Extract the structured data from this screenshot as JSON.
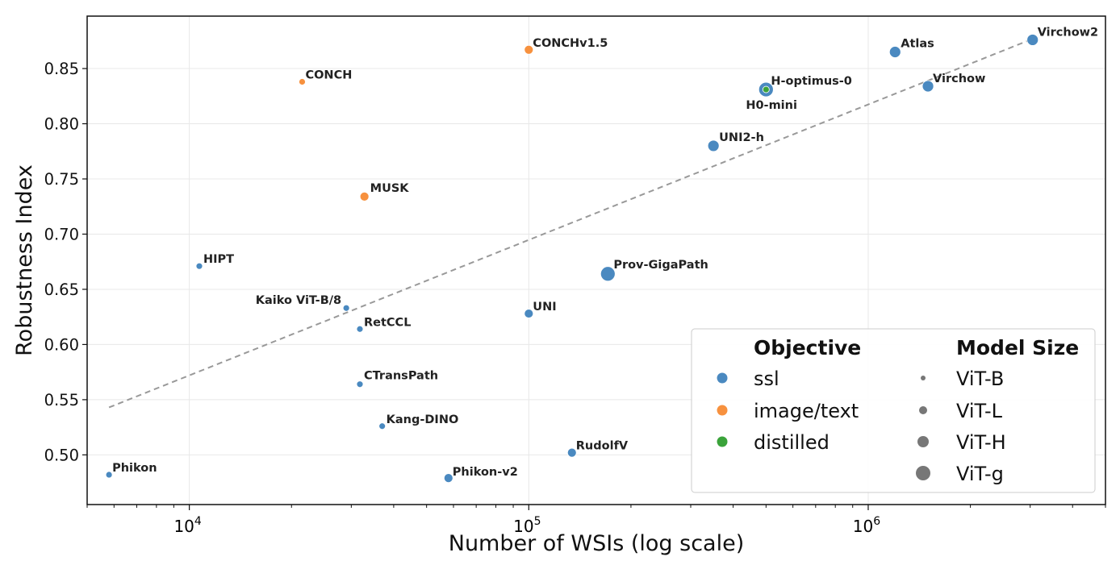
{
  "chart_data": {
    "type": "scatter",
    "xscale": "log",
    "xlabel": "Number of WSIs (log scale)",
    "ylabel": "Robustness Index",
    "xlim": [
      5000,
      5000000
    ],
    "ylim": [
      0.455,
      0.8975
    ],
    "yticks": [
      0.5,
      0.55,
      0.6,
      0.65,
      0.7,
      0.75,
      0.8,
      0.85
    ],
    "ytick_labels": [
      "0.50",
      "0.55",
      "0.60",
      "0.65",
      "0.70",
      "0.75",
      "0.80",
      "0.85"
    ],
    "xticks": [
      {
        "value": 10000,
        "base": "10",
        "exp": "4"
      },
      {
        "value": 100000,
        "base": "10",
        "exp": "5"
      },
      {
        "value": 1000000,
        "base": "10",
        "exp": "6"
      }
    ],
    "grid": true,
    "trendline": {
      "style": "dashed",
      "x": [
        5800,
        3000000
      ],
      "y": [
        0.543,
        0.876
      ]
    },
    "colors": {
      "ssl": "#4a89c0",
      "image/text": "#f7913e",
      "distilled": "#3aa33a",
      "trend": "#999999",
      "grid": "#e8e8e8"
    },
    "points": [
      {
        "name": "Phikon",
        "x": 5800,
        "y": 0.482,
        "objective": "ssl",
        "size": "ViT-B"
      },
      {
        "name": "HIPT",
        "x": 10700,
        "y": 0.671,
        "objective": "ssl",
        "size": "ViT-B"
      },
      {
        "name": "CONCH",
        "x": 21500,
        "y": 0.838,
        "objective": "image/text",
        "size": "ViT-B"
      },
      {
        "name": "Kaiko ViT-B/8",
        "x": 29000,
        "y": 0.633,
        "objective": "ssl",
        "size": "ViT-B"
      },
      {
        "name": "RetCCL",
        "x": 31800,
        "y": 0.614,
        "objective": "ssl",
        "size": "ViT-B"
      },
      {
        "name": "CTransPath",
        "x": 31800,
        "y": 0.564,
        "objective": "ssl",
        "size": "ViT-B"
      },
      {
        "name": "MUSK",
        "x": 32800,
        "y": 0.734,
        "objective": "image/text",
        "size": "ViT-L"
      },
      {
        "name": "Kang-DINO",
        "x": 37000,
        "y": 0.526,
        "objective": "ssl",
        "size": "ViT-B"
      },
      {
        "name": "Phikon-v2",
        "x": 58000,
        "y": 0.479,
        "objective": "ssl",
        "size": "ViT-L"
      },
      {
        "name": "UNI",
        "x": 100000,
        "y": 0.628,
        "objective": "ssl",
        "size": "ViT-L"
      },
      {
        "name": "CONCHv1.5",
        "x": 100000,
        "y": 0.867,
        "objective": "image/text",
        "size": "ViT-L"
      },
      {
        "name": "RudolfV",
        "x": 134000,
        "y": 0.502,
        "objective": "ssl",
        "size": "ViT-L"
      },
      {
        "name": "Prov-GigaPath",
        "x": 171000,
        "y": 0.664,
        "objective": "ssl",
        "size": "ViT-g"
      },
      {
        "name": "UNI2-h",
        "x": 350000,
        "y": 0.78,
        "objective": "ssl",
        "size": "ViT-H"
      },
      {
        "name": "H-optimus-0",
        "x": 500000,
        "y": 0.831,
        "objective": "ssl",
        "size": "ViT-g"
      },
      {
        "name": "H0-mini",
        "x": 500000,
        "y": 0.831,
        "objective": "distilled",
        "size": "ViT-B"
      },
      {
        "name": "Atlas",
        "x": 1200000,
        "y": 0.865,
        "objective": "ssl",
        "size": "ViT-H"
      },
      {
        "name": "Virchow",
        "x": 1500000,
        "y": 0.834,
        "objective": "ssl",
        "size": "ViT-H"
      },
      {
        "name": "Virchow2",
        "x": 3050000,
        "y": 0.876,
        "objective": "ssl",
        "size": "ViT-H"
      }
    ],
    "legend": {
      "placement": "lower-right",
      "objective_title": "Objective",
      "objective_items": [
        "ssl",
        "image/text",
        "distilled"
      ],
      "size_title": "Model Size",
      "size_items": [
        "ViT-B",
        "ViT-L",
        "ViT-H",
        "ViT-g"
      ]
    }
  }
}
